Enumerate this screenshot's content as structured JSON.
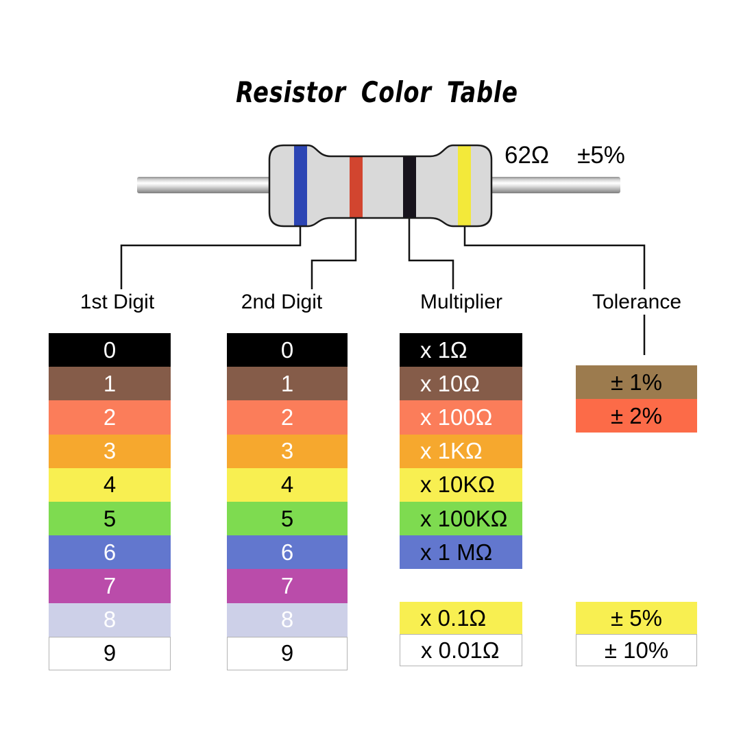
{
  "title": "Resistor Color Table",
  "resistor": {
    "value_label": "62Ω",
    "tolerance_label": "±5%",
    "body_color": "#d9d9d9",
    "outline_color": "#1a1a1a",
    "bands": [
      {
        "name": "blue",
        "color": "#2c45b4"
      },
      {
        "name": "red",
        "color": "#d2452f"
      },
      {
        "name": "black",
        "color": "#17131c"
      },
      {
        "name": "yellow",
        "color": "#f3e93a"
      }
    ]
  },
  "headers": [
    {
      "label": "1st Digit"
    },
    {
      "label": "2nd Digit"
    },
    {
      "label": "Multiplier"
    },
    {
      "label": "Tolerance"
    }
  ],
  "tables": {
    "digit1": [
      {
        "label": "0",
        "bg": "#000000",
        "fg": "#ffffff"
      },
      {
        "label": "1",
        "bg": "#855c49",
        "fg": "#ffffff"
      },
      {
        "label": "2",
        "bg": "#fb7d5a",
        "fg": "#ffffff"
      },
      {
        "label": "3",
        "bg": "#f6a82e",
        "fg": "#ffffff"
      },
      {
        "label": "4",
        "bg": "#f8ef51",
        "fg": "#000000"
      },
      {
        "label": "5",
        "bg": "#7edb50",
        "fg": "#000000"
      },
      {
        "label": "6",
        "bg": "#6277ce",
        "fg": "#ffffff"
      },
      {
        "label": "7",
        "bg": "#ba4caa",
        "fg": "#ffffff"
      },
      {
        "label": "8",
        "bg": "#cdd0e8",
        "fg": "#ffffff"
      },
      {
        "label": "9",
        "bg": "#ffffff",
        "fg": "#000000"
      }
    ],
    "digit2": [
      {
        "label": "0",
        "bg": "#000000",
        "fg": "#ffffff"
      },
      {
        "label": "1",
        "bg": "#855c49",
        "fg": "#ffffff"
      },
      {
        "label": "2",
        "bg": "#fb7d5a",
        "fg": "#ffffff"
      },
      {
        "label": "3",
        "bg": "#f6a82e",
        "fg": "#ffffff"
      },
      {
        "label": "4",
        "bg": "#f8ef51",
        "fg": "#000000"
      },
      {
        "label": "5",
        "bg": "#7edb50",
        "fg": "#000000"
      },
      {
        "label": "6",
        "bg": "#6277ce",
        "fg": "#ffffff"
      },
      {
        "label": "7",
        "bg": "#ba4caa",
        "fg": "#ffffff"
      },
      {
        "label": "8",
        "bg": "#cdd0e8",
        "fg": "#ffffff"
      },
      {
        "label": "9",
        "bg": "#ffffff",
        "fg": "#000000"
      }
    ],
    "multiplier_main": [
      {
        "label": "x 1Ω",
        "bg": "#000000",
        "fg": "#ffffff"
      },
      {
        "label": "x 10Ω",
        "bg": "#855c49",
        "fg": "#ffffff"
      },
      {
        "label": "x 100Ω",
        "bg": "#fb7d5a",
        "fg": "#ffffff"
      },
      {
        "label": "x 1KΩ",
        "bg": "#f6a82e",
        "fg": "#ffffff"
      },
      {
        "label": "x 10KΩ",
        "bg": "#f8ef51",
        "fg": "#000000"
      },
      {
        "label": "x 100KΩ",
        "bg": "#7edb50",
        "fg": "#000000"
      },
      {
        "label": "x 1 MΩ",
        "bg": "#6277ce",
        "fg": "#000000"
      }
    ],
    "multiplier_extra": [
      {
        "label": "x 0.1Ω",
        "bg": "#f8ef51",
        "fg": "#000000"
      },
      {
        "label": "x 0.01Ω",
        "bg": "#ffffff",
        "fg": "#000000"
      }
    ],
    "tolerance_main": [
      {
        "label": "± 1%",
        "bg": "#9c7b4e",
        "fg": "#000000"
      },
      {
        "label": "± 2%",
        "bg": "#fc6b48",
        "fg": "#000000"
      }
    ],
    "tolerance_extra": [
      {
        "label": "± 5%",
        "bg": "#f8ef51",
        "fg": "#000000"
      },
      {
        "label": "± 10%",
        "bg": "#ffffff",
        "fg": "#000000"
      }
    ]
  }
}
